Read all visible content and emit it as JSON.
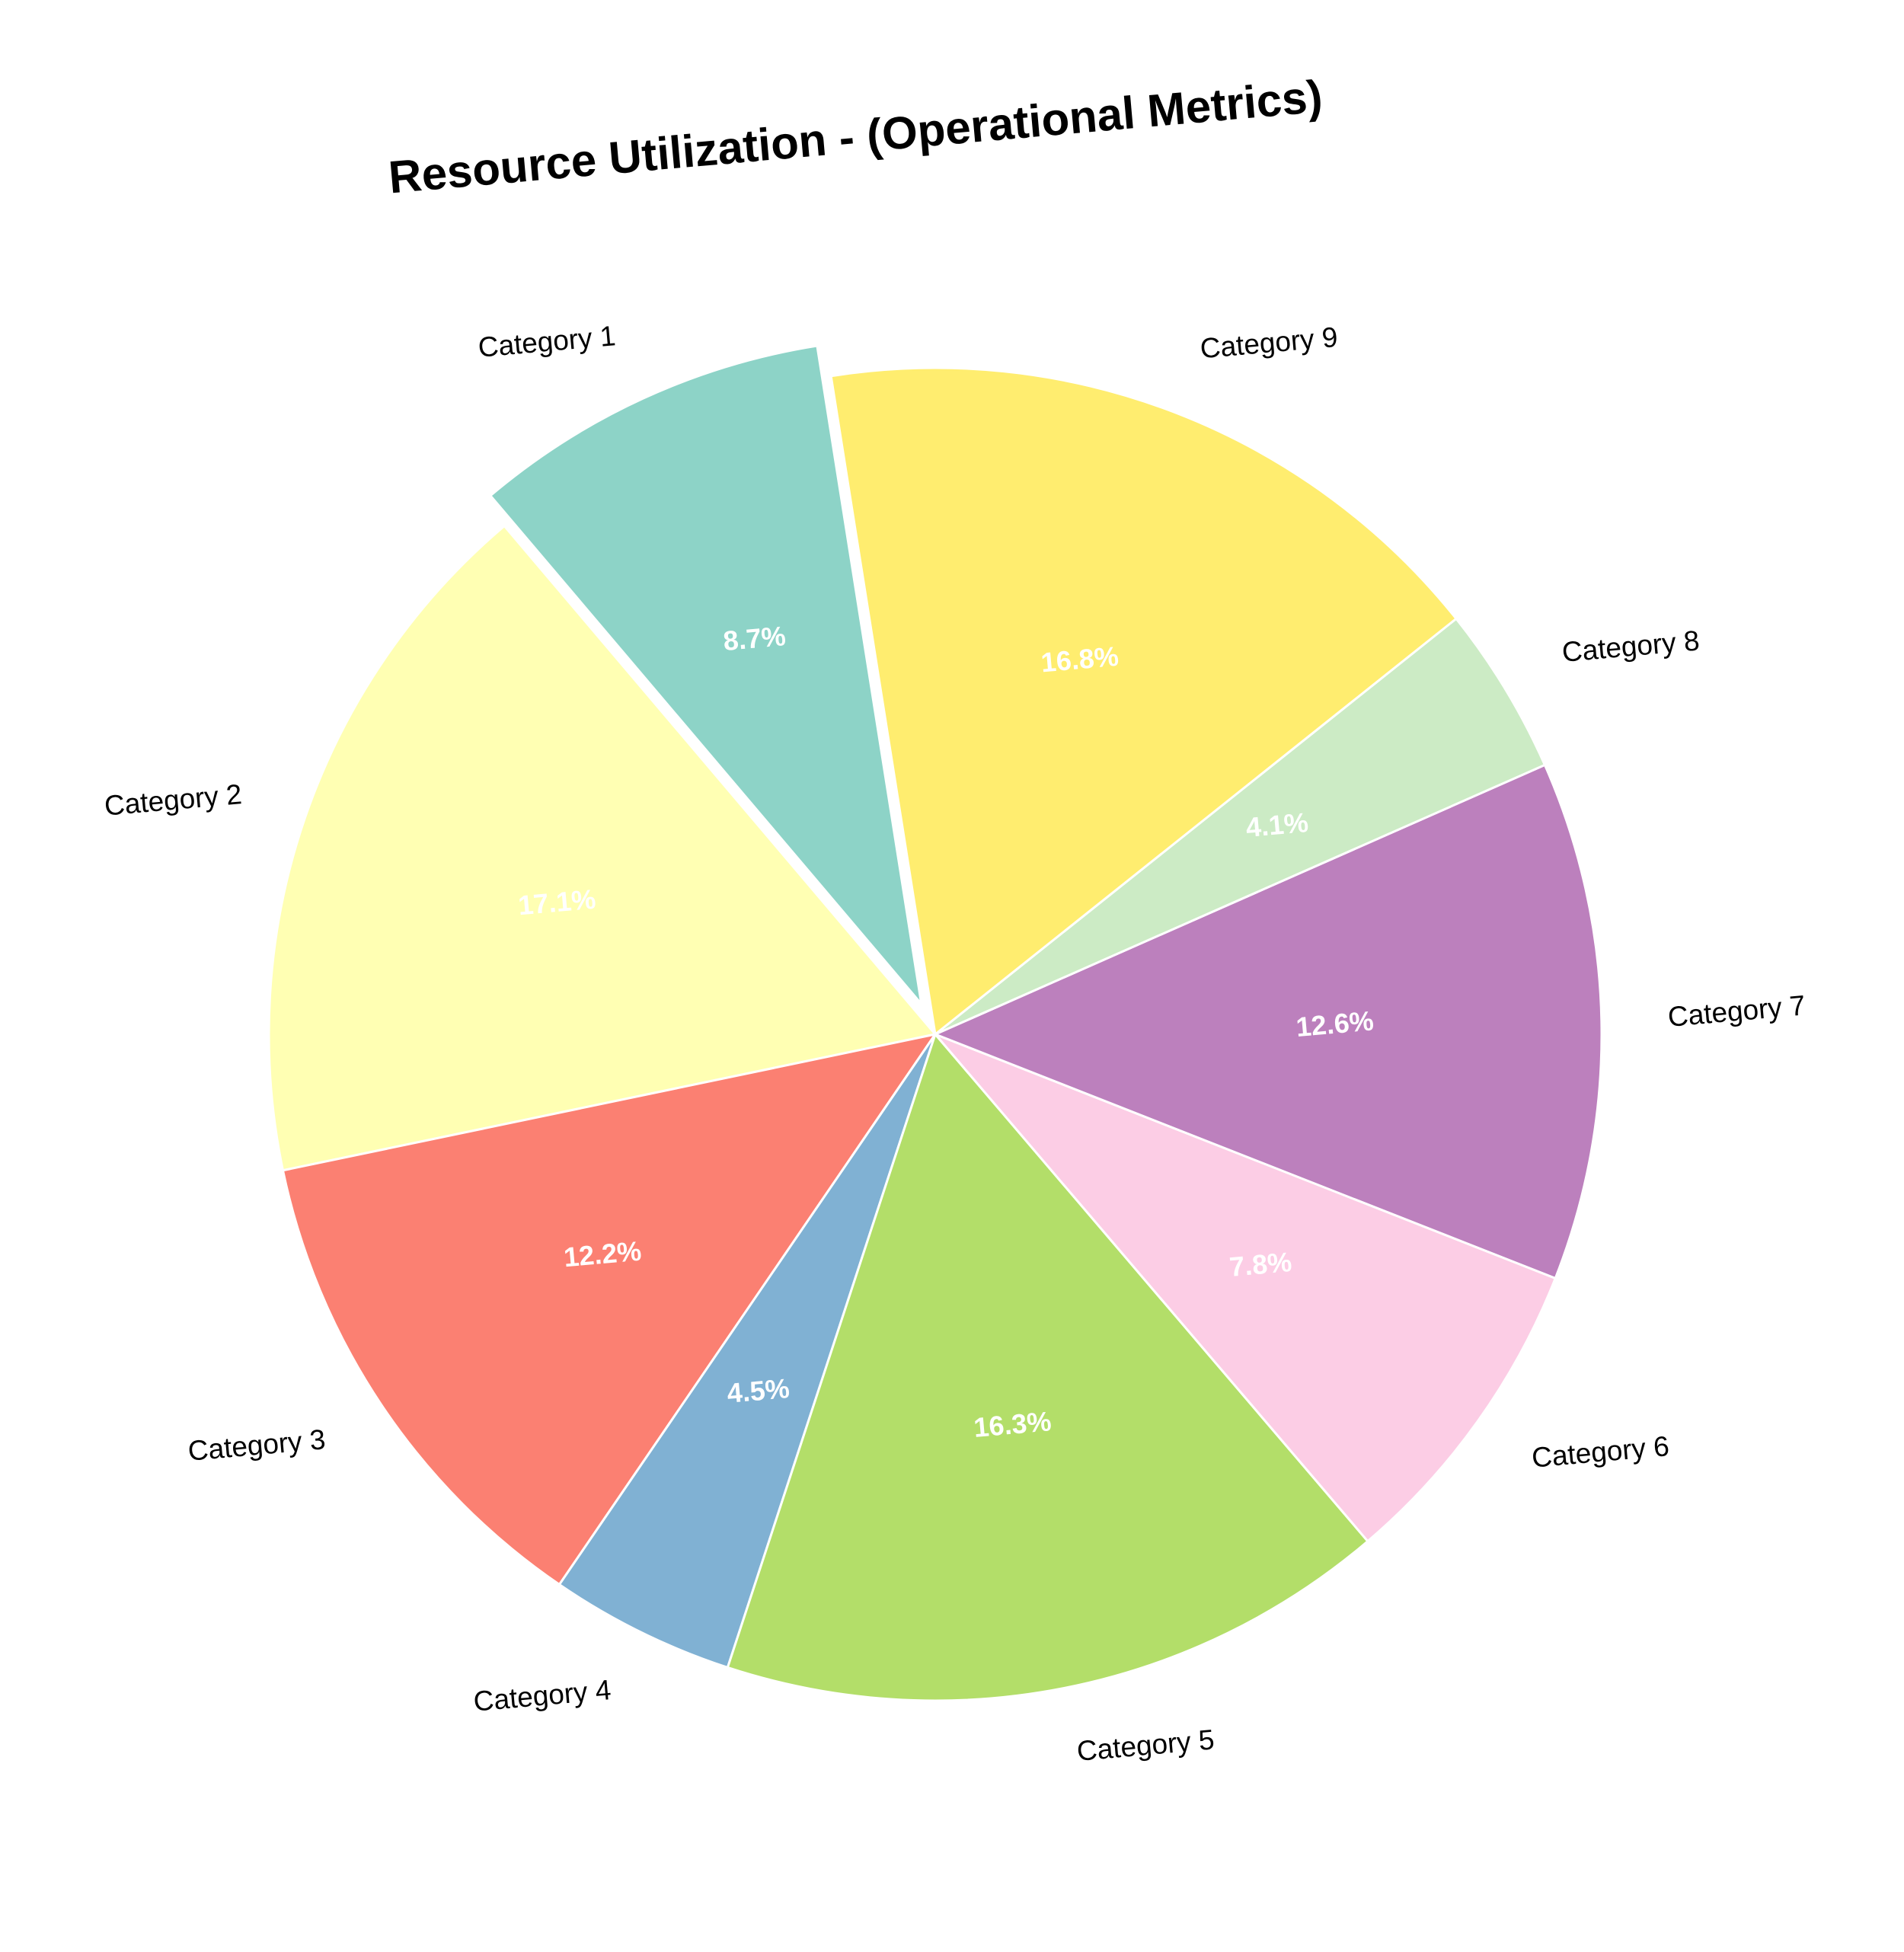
{
  "chart_data": {
    "type": "pie",
    "title": "Resource Utilization - (Operational Metrics)",
    "categories": [
      "Category 1",
      "Category 2",
      "Category 3",
      "Category 4",
      "Category 5",
      "Category 6",
      "Category 7",
      "Category 8",
      "Category 9"
    ],
    "values": [
      8.7,
      17.1,
      12.2,
      4.5,
      16.3,
      7.8,
      12.6,
      4.1,
      16.8
    ],
    "percent_labels": [
      "8.7%",
      "17.1%",
      "12.2%",
      "4.5%",
      "16.3%",
      "7.8%",
      "12.6%",
      "4.1%",
      "16.8%"
    ],
    "colors": [
      "#8dd3c7",
      "#ffffb3",
      "#fb8072",
      "#80b1d3",
      "#b3de69",
      "#fccde5",
      "#bc80bd",
      "#ccebc5",
      "#ffed6f"
    ],
    "exploded": [
      "Category 1"
    ],
    "direction": "counterclockwise",
    "edge_color": "#ffffff",
    "legend": "none"
  }
}
